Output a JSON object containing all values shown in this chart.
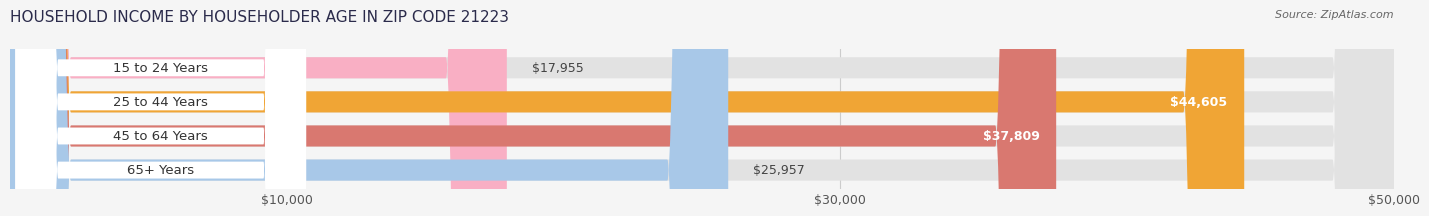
{
  "title": "HOUSEHOLD INCOME BY HOUSEHOLDER AGE IN ZIP CODE 21223",
  "source": "Source: ZipAtlas.com",
  "categories": [
    "15 to 24 Years",
    "25 to 44 Years",
    "45 to 64 Years",
    "65+ Years"
  ],
  "values": [
    17955,
    44605,
    37809,
    25957
  ],
  "bar_colors": [
    "#f9afc4",
    "#f0a535",
    "#d97870",
    "#a8c8e8"
  ],
  "label_colors": [
    "#555555",
    "#ffffff",
    "#ffffff",
    "#555555"
  ],
  "value_labels": [
    "$17,955",
    "$44,605",
    "$37,809",
    "$25,957"
  ],
  "xlim": [
    0,
    50000
  ],
  "xticks": [
    10000,
    30000,
    50000
  ],
  "xtick_labels": [
    "$10,000",
    "$30,000",
    "$50,000"
  ],
  "background_color": "#f5f5f5",
  "bar_bg_color": "#e2e2e2",
  "title_fontsize": 11,
  "source_fontsize": 8,
  "label_fontsize": 9,
  "tick_fontsize": 9,
  "bar_height": 0.62,
  "category_label_fontsize": 9.5
}
